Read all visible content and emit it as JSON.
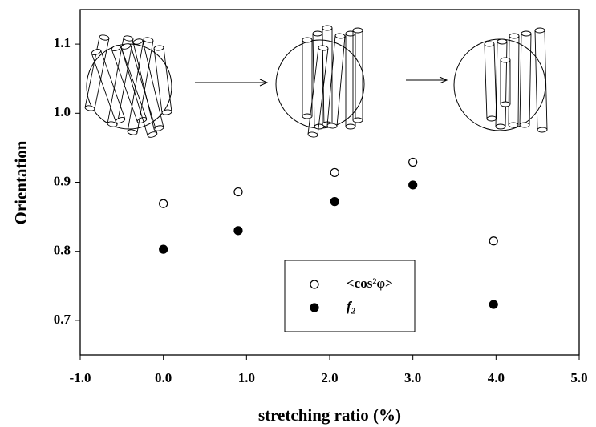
{
  "chart_data": {
    "type": "scatter",
    "xlabel": "stretching ratio (%)",
    "ylabel": "Orientation",
    "x": [
      0.0,
      0.9,
      2.06,
      3.0,
      3.97
    ],
    "series": [
      {
        "name": "<cos²φ>",
        "color": "#000000",
        "marker": "open",
        "values": [
          0.869,
          0.886,
          0.914,
          0.929,
          0.815
        ]
      },
      {
        "name": "f₂",
        "color": "#000000",
        "marker": "filled",
        "values": [
          0.803,
          0.83,
          0.872,
          0.896,
          0.723
        ]
      }
    ],
    "xlim": [
      -1,
      5
    ],
    "xticks": [
      {
        "value": -1,
        "label": "-1.0"
      },
      {
        "value": 0,
        "label": "0.0"
      },
      {
        "value": 1,
        "label": "1.0"
      },
      {
        "value": 2,
        "label": "2.0"
      },
      {
        "value": 3,
        "label": "3.0"
      },
      {
        "value": 4,
        "label": "4.0"
      },
      {
        "value": 5,
        "label": "5.0"
      }
    ],
    "ylim": [
      0.65,
      1.15
    ],
    "yticks": [
      0.7,
      0.8,
      0.9,
      {
        "value": 1,
        "label": "1.0"
      },
      1.1
    ]
  }
}
